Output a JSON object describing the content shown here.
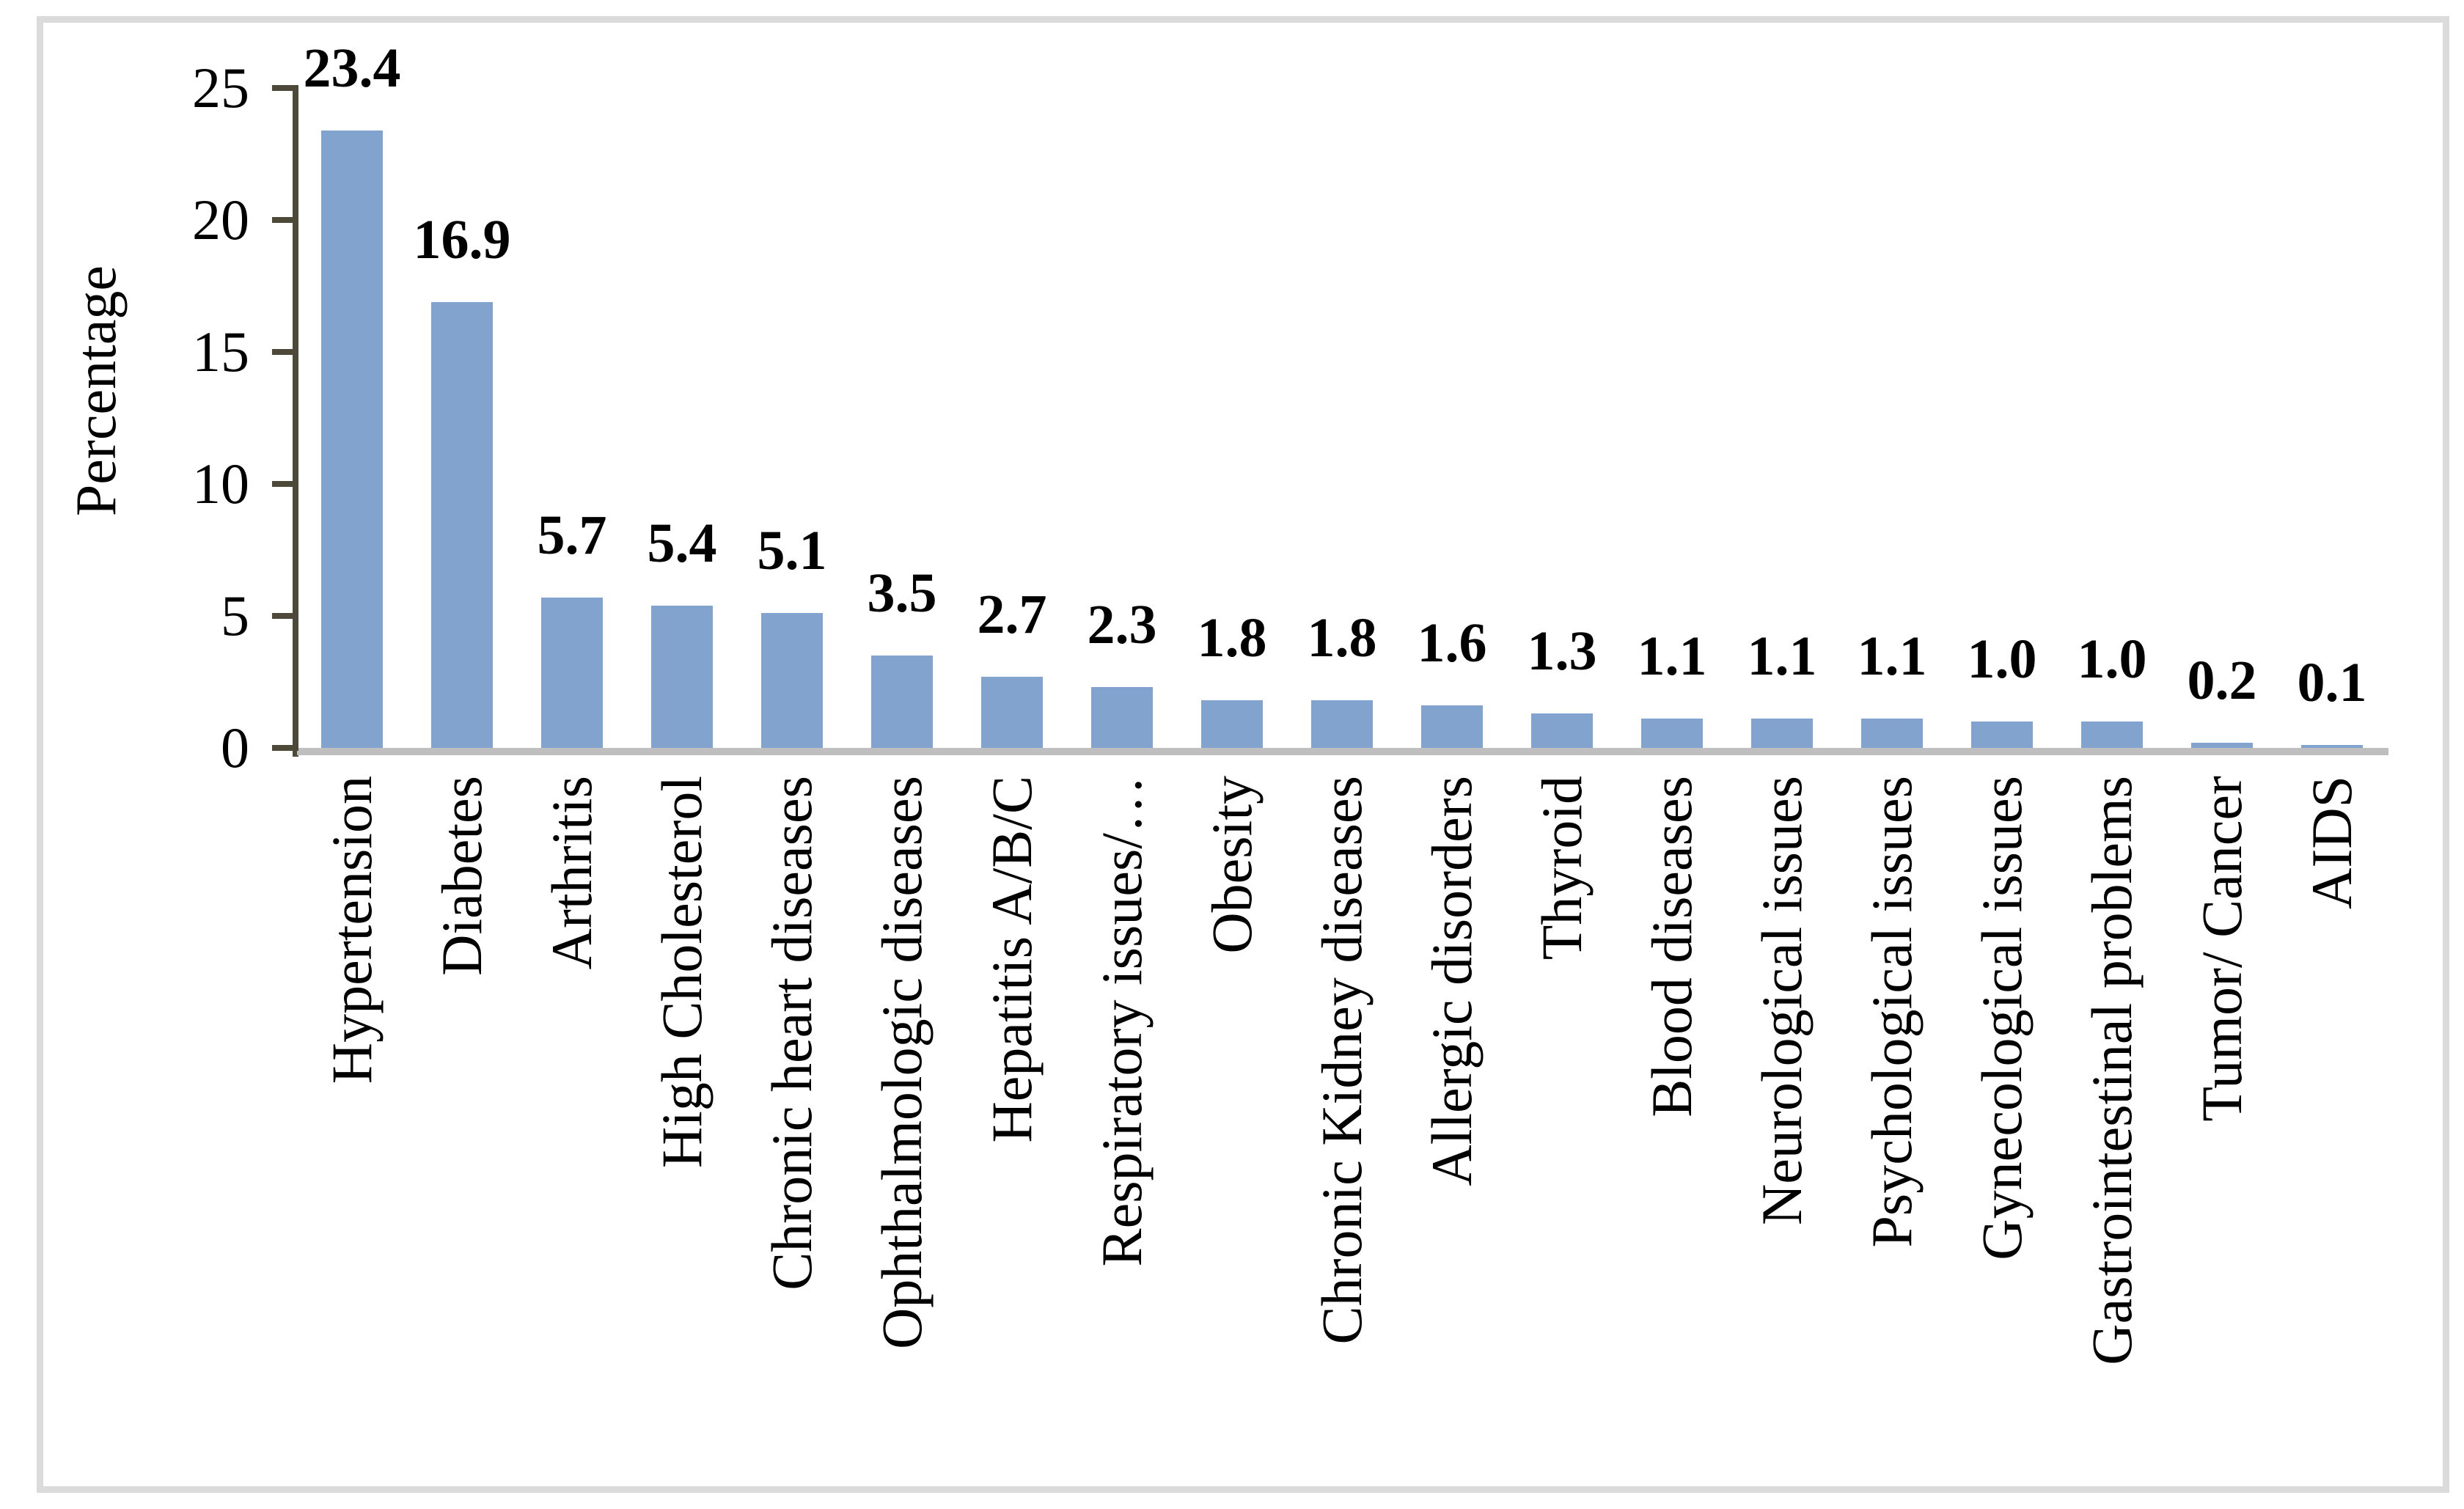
{
  "figure": {
    "border_color": "#dbdbdb",
    "background": "#ffffff"
  },
  "chart_data": {
    "type": "bar",
    "title": "",
    "xlabel": "",
    "ylabel": "Percentage",
    "ylim": [
      0,
      25
    ],
    "yticks": [
      0,
      5,
      10,
      15,
      20,
      25
    ],
    "grid": false,
    "legend": "none",
    "bar_color": "#81a3ce",
    "axis_color": "#4d4938",
    "baseline_color": "#bfbfbf",
    "categories": [
      "Hypertension",
      "Diabetes",
      "Arthritis",
      "High Cholesterol",
      "Chronic heart diseases",
      "Ophthalmologic diseases",
      "Hepatitis A/B/C",
      "Respiratory issues/…",
      "Obesity",
      "Chronic Kidney diseases",
      "Allergic disorders",
      "Thyroid",
      "Blood diseases",
      "Neurological issues",
      "Psychological issues",
      "Gynecological issues",
      "Gastrointestinal problems",
      "Tumor/ Cancer",
      "AIDS"
    ],
    "values": [
      23.4,
      16.9,
      5.7,
      5.4,
      5.1,
      3.5,
      2.7,
      2.3,
      1.8,
      1.8,
      1.6,
      1.3,
      1.1,
      1.1,
      1.1,
      1.0,
      1.0,
      0.2,
      0.1
    ],
    "value_labels": [
      "23.4",
      "16.9",
      "5.7",
      "5.4",
      "5.1",
      "3.5",
      "2.7",
      "2.3",
      "1.8",
      "1.8",
      "1.6",
      "1.3",
      "1.1",
      "1.1",
      "1.1",
      "1.0",
      "1.0",
      "0.2",
      "0.1"
    ]
  }
}
